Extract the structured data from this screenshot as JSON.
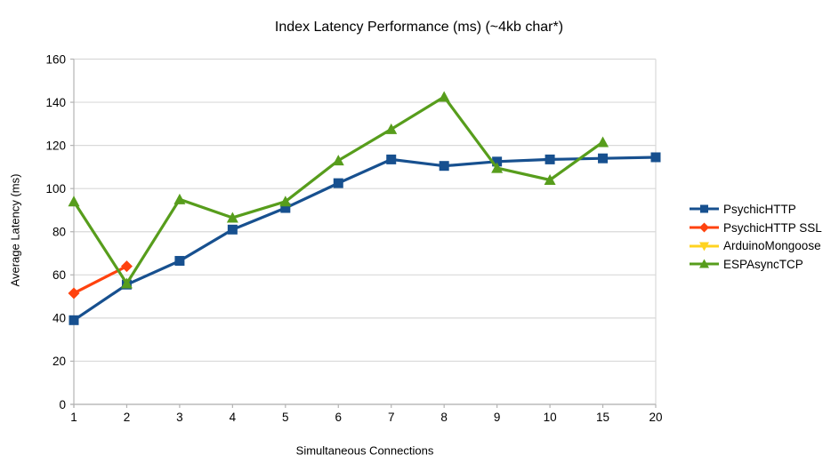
{
  "chart_data": {
    "type": "line",
    "title": "Index Latency Performance (ms) (~4kb char*)",
    "xlabel": "Simultaneous Connections",
    "ylabel": "Average Latency (ms)",
    "categories": [
      "1",
      "2",
      "3",
      "4",
      "5",
      "6",
      "7",
      "8",
      "9",
      "10",
      "15",
      "20"
    ],
    "y_ticks": [
      0,
      20,
      40,
      60,
      80,
      100,
      120,
      140,
      160
    ],
    "ylim": [
      0,
      160
    ],
    "grid": "horizontal",
    "legend_position": "right",
    "series": [
      {
        "name": "PsychicHTTP",
        "color": "#17508F",
        "marker": "square",
        "values": [
          39,
          55.5,
          66.5,
          81,
          91,
          102.5,
          113.5,
          110.5,
          112.5,
          113.5,
          114,
          114.5
        ]
      },
      {
        "name": "PsychicHTTP SSL",
        "color": "#FF420E",
        "marker": "diamond",
        "values": [
          51.5,
          64,
          null,
          null,
          null,
          null,
          null,
          null,
          null,
          null,
          null,
          null
        ]
      },
      {
        "name": "ArduinoMongoose",
        "color": "#FFD320",
        "marker": "triangle-down",
        "values": [
          null,
          null,
          null,
          null,
          null,
          null,
          null,
          null,
          null,
          null,
          null,
          null
        ]
      },
      {
        "name": "ESPAsyncTCP",
        "color": "#579D1C",
        "marker": "triangle-up",
        "values": [
          94,
          56,
          95,
          86.5,
          94,
          113,
          127.5,
          142.5,
          109.5,
          104,
          121.5,
          null
        ]
      }
    ]
  },
  "colors": {
    "background": "#FFFFFF",
    "gridline": "#D9D9D9",
    "axis": "#B3B3B3",
    "text": "#000000"
  }
}
